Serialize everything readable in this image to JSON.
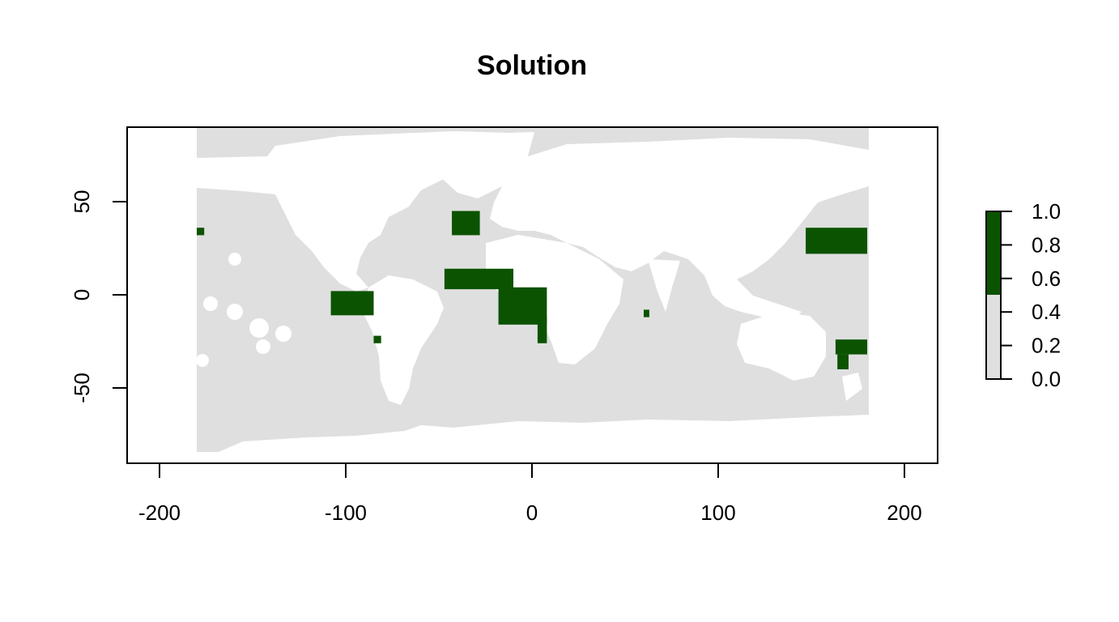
{
  "title": "Solution",
  "colors": {
    "selected": "#0b5300",
    "background": "#dfdfdf",
    "land": "#ffffff",
    "axis": "#000000"
  },
  "chart_data": {
    "type": "heatmap",
    "xlim": [
      -220,
      220
    ],
    "ylim": [
      -90,
      90
    ],
    "x_ticks": [
      "-200",
      "-100",
      "0",
      "100",
      "200"
    ],
    "y_ticks": [
      "-50",
      "0",
      "50"
    ],
    "grid": false,
    "legend": {
      "placement": "right",
      "ticks": [
        "0.0",
        "0.2",
        "0.4",
        "0.6",
        "0.8",
        "1.0"
      ],
      "threshold": 0.5,
      "low_color": "#dfdfdf",
      "high_color": "#0b5300"
    },
    "selected_regions": [
      {
        "lon": [
          -43,
          -28
        ],
        "lat": [
          32,
          45
        ]
      },
      {
        "lon": [
          -47,
          -10
        ],
        "lat": [
          3,
          14
        ]
      },
      {
        "lon": [
          -18,
          8
        ],
        "lat": [
          -16,
          4
        ]
      },
      {
        "lon": [
          3,
          8
        ],
        "lat": [
          -26,
          -12
        ]
      },
      {
        "lon": [
          -108,
          -85
        ],
        "lat": [
          -11,
          2
        ]
      },
      {
        "lon": [
          -85,
          -81
        ],
        "lat": [
          -26,
          -22
        ]
      },
      {
        "lon": [
          147,
          180
        ],
        "lat": [
          22,
          36
        ]
      },
      {
        "lon": [
          163,
          180
        ],
        "lat": [
          -32,
          -24
        ]
      },
      {
        "lon": [
          164,
          170
        ],
        "lat": [
          -40,
          -32
        ]
      },
      {
        "lon": [
          -180,
          -176
        ],
        "lat": [
          32,
          36
        ]
      },
      {
        "lon": [
          60,
          63
        ],
        "lat": [
          -12,
          -8
        ]
      }
    ]
  }
}
